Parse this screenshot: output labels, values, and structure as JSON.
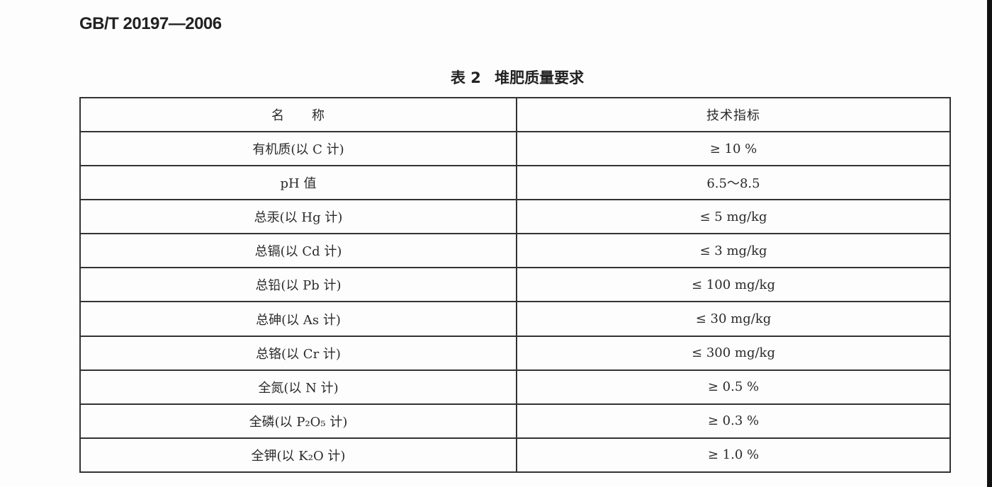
{
  "document": {
    "standard_number": "GB/T 20197—2006",
    "table_label": "表 2",
    "table_title": "堆肥质量要求",
    "columns": [
      "名　　称",
      "技术指标"
    ],
    "rows": [
      {
        "name": "有机质(以 C 计)",
        "value": "≥ 10 %"
      },
      {
        "name": "pH 值",
        "value": "6.5～8.5"
      },
      {
        "name": "总汞(以 Hg 计)",
        "value": "≤ 5 mg/kg"
      },
      {
        "name": "总镉(以 Cd 计)",
        "value": "≤ 3 mg/kg"
      },
      {
        "name": "总铅(以 Pb 计)",
        "value": "≤ 100 mg/kg"
      },
      {
        "name": "总砷(以 As 计)",
        "value": "≤ 30 mg/kg"
      },
      {
        "name": "总铬(以 Cr 计)",
        "value": "≤ 300 mg/kg"
      },
      {
        "name": "全氮(以 N 计)",
        "value": "≥ 0.5 %"
      },
      {
        "name": "全磷(以 P₂O₅ 计)",
        "value": "≥ 0.3 %"
      },
      {
        "name": "全钾(以 K₂O 计)",
        "value": "≥ 1.0 %"
      }
    ]
  }
}
